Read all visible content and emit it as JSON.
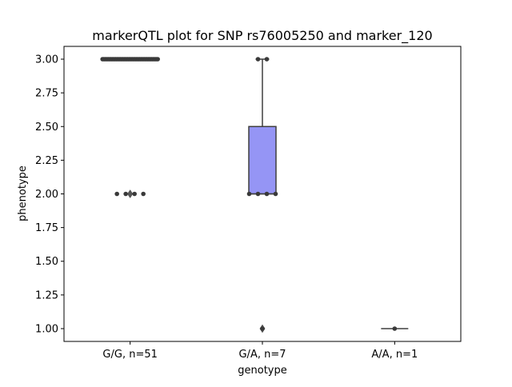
{
  "chart_data": {
    "type": "box",
    "title": "markerQTL plot for SNP rs76005250 and marker_120",
    "xlabel": "genotype",
    "ylabel": "phenotype",
    "ylim": [
      0.905,
      3.095
    ],
    "yticks": [
      "1.00",
      "1.25",
      "1.50",
      "1.75",
      "2.00",
      "2.25",
      "2.50",
      "2.75",
      "3.00"
    ],
    "categories": [
      "G/G, n=51",
      "G/A, n=7",
      "A/A, n=1"
    ],
    "grid": false,
    "legend": "none",
    "colors": {
      "box_fill": "#9595f5",
      "line": "#3f3f3f",
      "point": "#3a3a3a"
    },
    "boxes": [
      {
        "category": "G/G, n=51",
        "q1": 3.0,
        "median": 3.0,
        "q3": 3.0,
        "whisker_low": 3.0,
        "whisker_high": 3.0,
        "fliers": [
          2.0,
          2.0
        ]
      },
      {
        "category": "G/A, n=7",
        "q1": 2.0,
        "median": 2.0,
        "q3": 2.5,
        "whisker_low": 2.0,
        "whisker_high": 3.0,
        "fliers": [
          1.0
        ]
      },
      {
        "category": "A/A, n=1",
        "q1": 1.0,
        "median": 1.0,
        "q3": 1.0,
        "whisker_low": 1.0,
        "whisker_high": 1.0,
        "fliers": []
      }
    ],
    "points": [
      {
        "category": "G/G, n=51",
        "values": [
          3,
          3,
          3,
          3,
          3,
          3,
          3,
          3,
          3,
          3,
          3,
          3,
          3,
          3,
          3,
          3,
          3,
          3,
          3,
          3,
          3,
          3,
          3,
          3,
          3,
          3,
          3,
          3,
          3,
          3,
          3,
          3,
          3,
          3,
          3,
          3,
          3,
          3,
          3,
          3,
          3,
          3,
          3,
          3,
          3,
          3,
          3,
          2,
          2,
          2,
          2
        ]
      },
      {
        "category": "G/A, n=7",
        "values": [
          3,
          3,
          2,
          2,
          2,
          2,
          1
        ]
      },
      {
        "category": "A/A, n=1",
        "values": [
          1
        ]
      }
    ]
  }
}
